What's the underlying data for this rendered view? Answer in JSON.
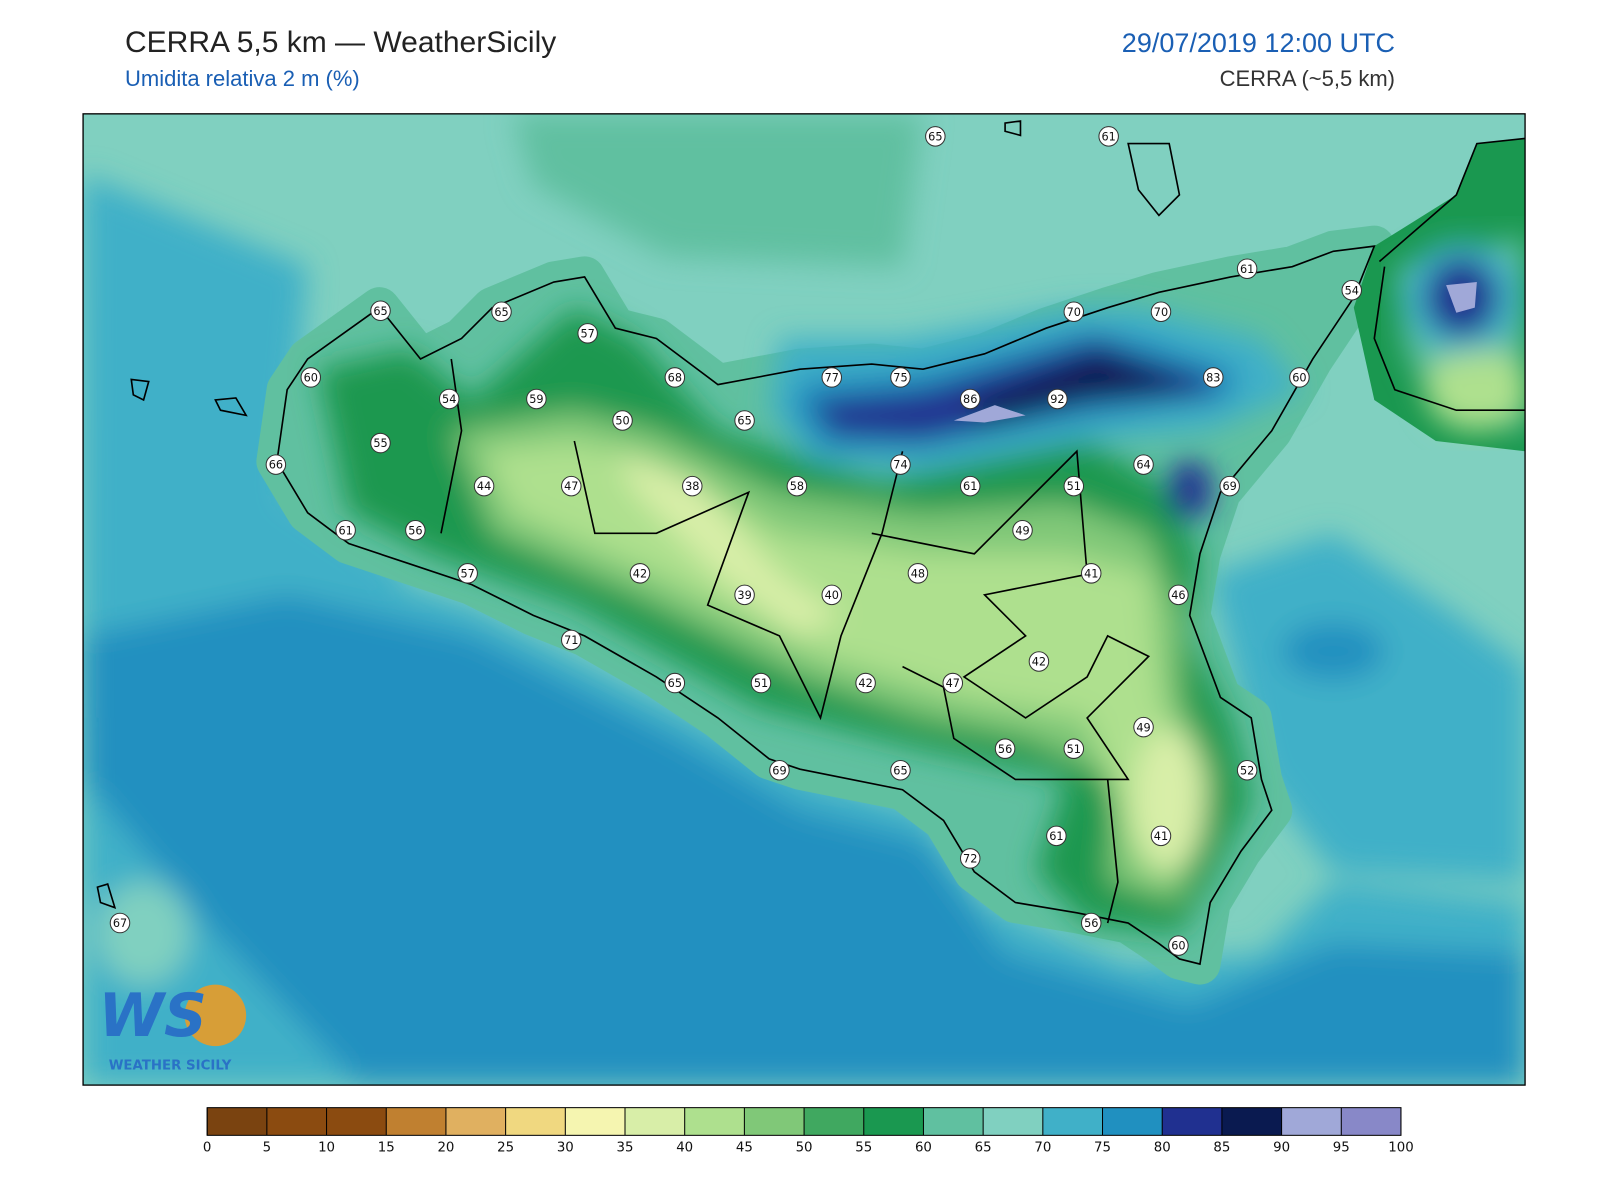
{
  "header": {
    "title": "CERRA 5,5 km — WeatherSicily",
    "subtitle": "Umidita relativa 2 m (%)",
    "datetime": "29/07/2019 12:00 UTC",
    "source": "CERRA (~5,5 km)"
  },
  "logo": {
    "mark": "WS",
    "text": "WEATHER SICILY"
  },
  "stations": [
    65,
    61,
    61,
    54,
    65,
    65,
    57,
    70,
    70,
    60,
    54,
    59,
    68,
    77,
    75,
    83,
    60,
    50,
    65,
    86,
    92,
    55,
    66,
    74,
    64,
    44,
    47,
    38,
    58,
    61,
    51,
    69,
    61,
    56,
    49,
    42,
    48,
    41,
    57,
    39,
    40,
    46,
    71,
    42,
    65,
    51,
    42,
    47,
    49,
    56,
    51,
    69,
    65,
    52,
    61,
    41,
    72,
    67,
    56,
    60
  ],
  "legend": {
    "ticks": [
      0,
      5,
      10,
      15,
      20,
      25,
      30,
      35,
      40,
      45,
      50,
      55,
      60,
      65,
      70,
      75,
      80,
      85,
      90,
      95,
      100
    ],
    "colors": [
      "#7a4310",
      "#8b4b10",
      "#8b4b10",
      "#c08030",
      "#e0b060",
      "#f0d880",
      "#f5f5b0",
      "#d8eea8",
      "#aee08e",
      "#80c878",
      "#40a860",
      "#1a9850",
      "#60c0a0",
      "#80d0c0",
      "#40b0c8",
      "#2090c0",
      "#203090",
      "#0a1a50",
      "#a0a8d8",
      "#8888c8"
    ]
  }
}
